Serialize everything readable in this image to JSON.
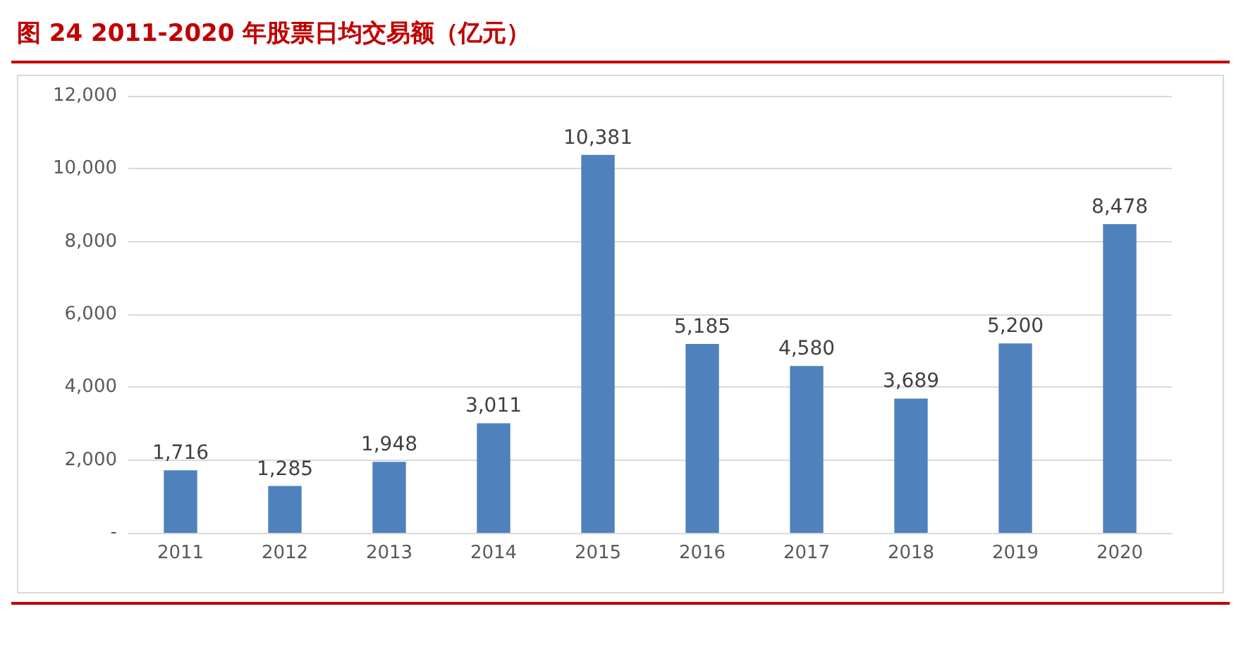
{
  "chart_data": {
    "type": "bar",
    "title": "图 24 2011-2020 年股票日均交易额（亿元）",
    "categories": [
      "2011",
      "2012",
      "2013",
      "2014",
      "2015",
      "2016",
      "2017",
      "2018",
      "2019",
      "2020"
    ],
    "values": [
      1716,
      1285,
      1948,
      3011,
      10381,
      5185,
      4580,
      3689,
      5200,
      8478
    ],
    "value_labels": [
      "1,716",
      "1,285",
      "1,948",
      "3,011",
      "10,381",
      "5,185",
      "4,580",
      "3,689",
      "5,200",
      "8,478"
    ],
    "color": "#4f81bd",
    "ylim": [
      0,
      12000
    ],
    "yticks": [
      {
        "value": 0,
        "label": "-"
      },
      {
        "value": 2000,
        "label": "2,000"
      },
      {
        "value": 4000,
        "label": "4,000"
      },
      {
        "value": 6000,
        "label": "6,000"
      },
      {
        "value": 8000,
        "label": "8,000"
      },
      {
        "value": 10000,
        "label": "10,000"
      },
      {
        "value": 12000,
        "label": "12,000"
      }
    ],
    "grid": "y"
  }
}
